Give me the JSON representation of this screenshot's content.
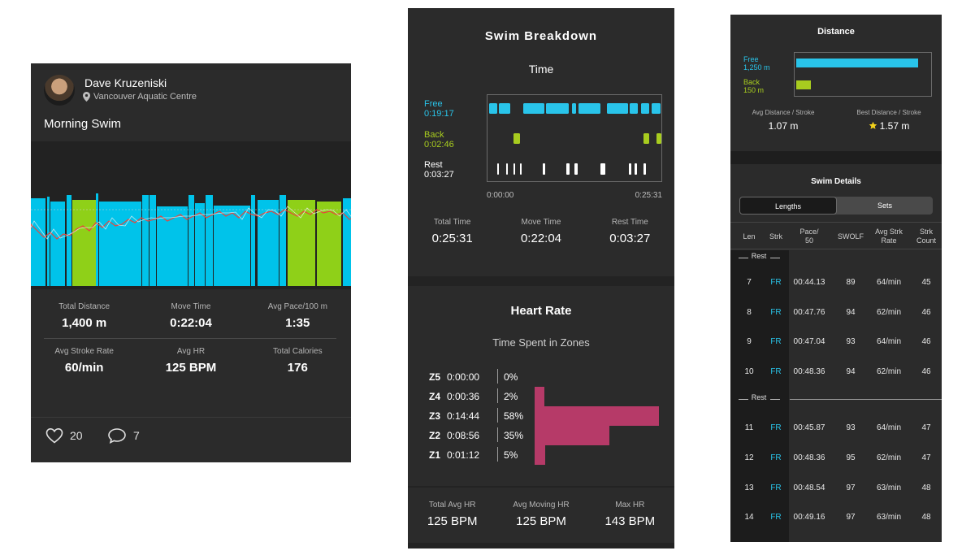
{
  "card": {
    "user_name": "Dave Kruzeniski",
    "location": "Vancouver Aquatic Centre",
    "title": "Morning Swim",
    "stats": [
      {
        "label": "Total Distance",
        "value": "1,400 m"
      },
      {
        "label": "Move Time",
        "value": "0:22:04"
      },
      {
        "label": "Avg Pace/100 m",
        "value": "1:35"
      },
      {
        "label": "Avg Stroke Rate",
        "value": "60/min"
      },
      {
        "label": "Avg HR",
        "value": "125 BPM"
      },
      {
        "label": "Total Calories",
        "value": "176"
      }
    ],
    "likes": "20",
    "comments": "7",
    "colors": {
      "free": "#00c3ea",
      "back": "#8fd018",
      "hr": "#e8453c"
    }
  },
  "breakdown": {
    "title": "Swim Breakdown",
    "time_title": "Time",
    "strokes": [
      {
        "name": "Free",
        "time": "0:19:17",
        "color": "#29c4ea"
      },
      {
        "name": "Back",
        "time": "0:02:46",
        "color": "#a8cc1f"
      },
      {
        "name": "Rest",
        "time": "0:03:27",
        "color": "#ffffff"
      }
    ],
    "timeline_start": "0:00:00",
    "timeline_end": "0:25:31",
    "totals": [
      {
        "label": "Total Time",
        "value": "0:25:31"
      },
      {
        "label": "Move Time",
        "value": "0:22:04"
      },
      {
        "label": "Rest Time",
        "value": "0:03:27"
      }
    ]
  },
  "heart_rate": {
    "title": "Heart Rate",
    "subtitle": "Time Spent in Zones",
    "zones": [
      {
        "zone": "Z5",
        "time": "0:00:00",
        "pct": "0%",
        "value": 0
      },
      {
        "zone": "Z4",
        "time": "0:00:36",
        "pct": "2%",
        "value": 2
      },
      {
        "zone": "Z3",
        "time": "0:14:44",
        "pct": "58%",
        "value": 58
      },
      {
        "zone": "Z2",
        "time": "0:08:56",
        "pct": "35%",
        "value": 35
      },
      {
        "zone": "Z1",
        "time": "0:01:12",
        "pct": "5%",
        "value": 5
      }
    ],
    "totals": [
      {
        "label": "Total Avg HR",
        "value": "125 BPM"
      },
      {
        "label": "Avg Moving HR",
        "value": "125 BPM"
      },
      {
        "label": "Max HR",
        "value": "143 BPM"
      }
    ]
  },
  "distance": {
    "title": "Distance",
    "free": {
      "name": "Free",
      "value": "1,250 m",
      "meters": 1250
    },
    "back": {
      "name": "Back",
      "value": "150 m",
      "meters": 150
    },
    "avg_label": "Avg Distance / Stroke",
    "avg_value": "1.07 m",
    "best_label": "Best Distance / Stroke",
    "best_value": "1.57 m"
  },
  "swim_details": {
    "title": "Swim Details",
    "tabs": [
      "Lengths",
      "Sets"
    ],
    "headers": [
      "Len",
      "Strk",
      "Pace/\n50",
      "SWOLF",
      "Avg Strk\nRate",
      "Strk\nCount"
    ],
    "rest_label": "Rest",
    "rows": [
      {
        "type": "rest"
      },
      {
        "type": "len",
        "len": "7",
        "strk": "FR",
        "pace": "00:44.13",
        "swolf": "89",
        "rate": "64/min",
        "count": "45"
      },
      {
        "type": "len",
        "len": "8",
        "strk": "FR",
        "pace": "00:47.76",
        "swolf": "94",
        "rate": "62/min",
        "count": "46"
      },
      {
        "type": "len",
        "len": "9",
        "strk": "FR",
        "pace": "00:47.04",
        "swolf": "93",
        "rate": "64/min",
        "count": "46"
      },
      {
        "type": "len",
        "len": "10",
        "strk": "FR",
        "pace": "00:48.36",
        "swolf": "94",
        "rate": "62/min",
        "count": "46"
      },
      {
        "type": "rest"
      },
      {
        "type": "len",
        "len": "11",
        "strk": "FR",
        "pace": "00:45.87",
        "swolf": "93",
        "rate": "64/min",
        "count": "47"
      },
      {
        "type": "len",
        "len": "12",
        "strk": "FR",
        "pace": "00:48.36",
        "swolf": "95",
        "rate": "62/min",
        "count": "47"
      },
      {
        "type": "len",
        "len": "13",
        "strk": "FR",
        "pace": "00:48.54",
        "swolf": "97",
        "rate": "63/min",
        "count": "48"
      },
      {
        "type": "len",
        "len": "14",
        "strk": "FR",
        "pace": "00:49.16",
        "swolf": "97",
        "rate": "63/min",
        "count": "48"
      }
    ]
  }
}
